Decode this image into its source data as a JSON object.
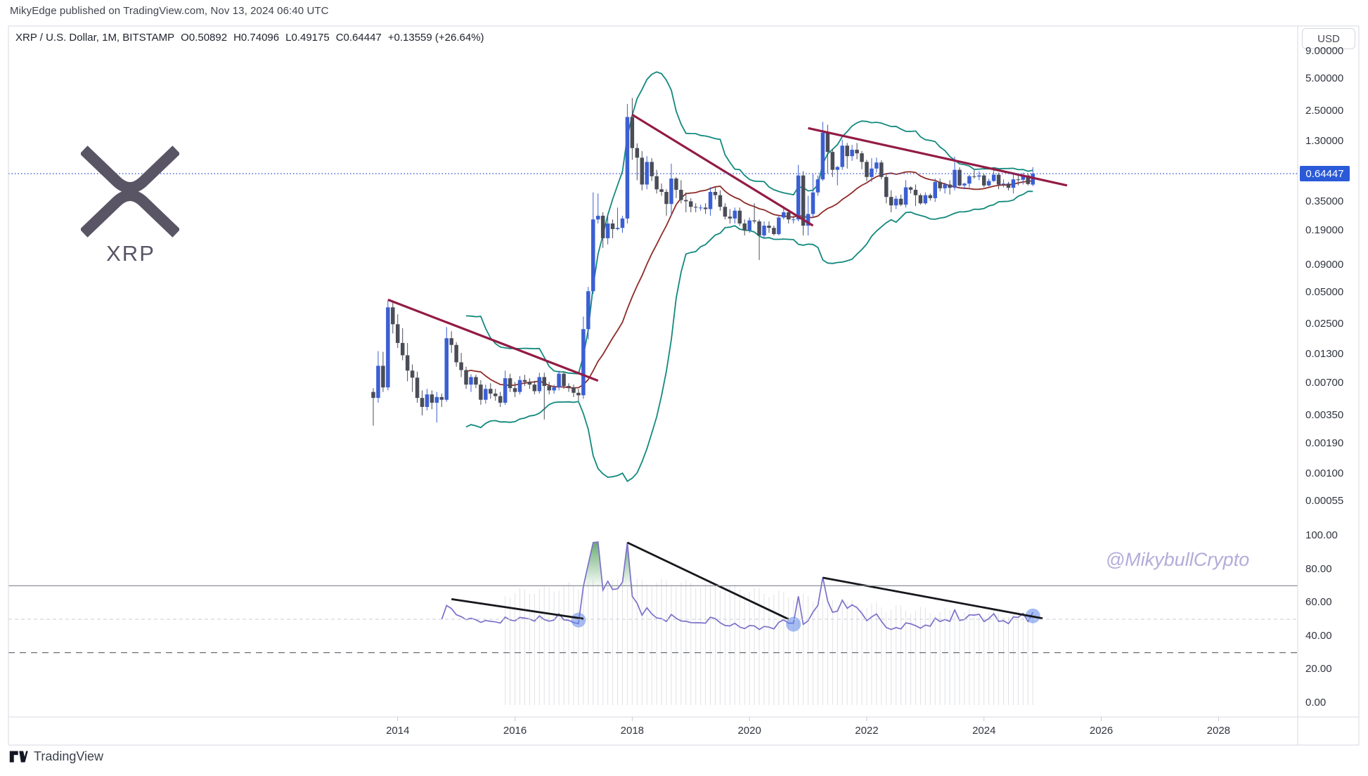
{
  "attribution": "MikyEdge published on TradingView.com, Nov 13, 2024 06:40 UTC",
  "legend": {
    "symbol": "XRP / U.S. Dollar, 1M, BITSTAMP",
    "o": "O0.50892",
    "h": "H0.74096",
    "l": "L0.49175",
    "c": "C0.64447",
    "change": "+0.13559 (+26.64%)"
  },
  "currency_button": "USD",
  "price_label": "0.64447",
  "watermark": "@MikybullCrypto",
  "logo": {
    "text": "XRP"
  },
  "footer": {
    "brand": "TradingView"
  },
  "colors": {
    "up": "#3b5fd3",
    "down": "#4a4d56",
    "bb": "#12897d",
    "bb_basis": "#8e2c28",
    "trendline": "#931b44",
    "current_line": "#3a57d0",
    "rsi": "#7b70ca",
    "rsi_trendline": "#16181d",
    "rsi_marker": "#5d87e8",
    "overbought_fill": "#4c9b57",
    "band70": "#82858f",
    "band50": "#c9ccd4",
    "band30": "#5f626c",
    "frame": "#d7dae1",
    "histogram": "#8f93a0",
    "label_bg": "#2a5ad8"
  },
  "price_axis": {
    "ticks": [
      "9.00000",
      "5.00000",
      "2.50000",
      "1.30000",
      "0.35000",
      "0.19000",
      "0.09000",
      "0.05000",
      "0.02500",
      "0.01300",
      "0.00700",
      "0.00350",
      "0.00190",
      "0.00100",
      "0.00055"
    ],
    "tick_values": [
      9,
      5,
      2.5,
      1.3,
      0.35,
      0.19,
      0.09,
      0.05,
      0.025,
      0.013,
      0.007,
      0.0035,
      0.0019,
      0.001,
      0.00055
    ]
  },
  "rsi_axis": {
    "ticks": [
      "100.00",
      "80.00",
      "60.00",
      "40.00",
      "20.00",
      "0.00"
    ],
    "tick_values": [
      100,
      80,
      60,
      40,
      20,
      0
    ],
    "bands": {
      "upper": 70,
      "middle": 50,
      "lower": 30
    }
  },
  "time_axis": {
    "years": [
      2014,
      2016,
      2018,
      2020,
      2022,
      2024,
      2026,
      2028
    ]
  },
  "chart_data": {
    "type": "candlestick",
    "title": "XRP / U.S. Dollar",
    "timeframe": "1M",
    "exchange": "BITSTAMP",
    "scale": "logarithmic",
    "current_price": 0.64447,
    "last_bar": {
      "open": 0.50892,
      "high": 0.74096,
      "low": 0.49175,
      "close": 0.64447,
      "change": 0.13559,
      "change_pct": 26.64
    },
    "start_month": "2013-08",
    "candles": [
      [
        0.0058,
        0.0063,
        0.0028,
        0.0051
      ],
      [
        0.0051,
        0.014,
        0.0046,
        0.0102
      ],
      [
        0.0102,
        0.0138,
        0.0058,
        0.0064
      ],
      [
        0.0064,
        0.042,
        0.006,
        0.036
      ],
      [
        0.036,
        0.0415,
        0.0205,
        0.025
      ],
      [
        0.025,
        0.031,
        0.015,
        0.0167
      ],
      [
        0.0167,
        0.023,
        0.0115,
        0.0128
      ],
      [
        0.0128,
        0.0167,
        0.0073,
        0.0092
      ],
      [
        0.0092,
        0.0105,
        0.0058,
        0.0079
      ],
      [
        0.0079,
        0.009,
        0.0046,
        0.0051
      ],
      [
        0.0051,
        0.006,
        0.0035,
        0.0042
      ],
      [
        0.0042,
        0.0062,
        0.0039,
        0.0055
      ],
      [
        0.0055,
        0.006,
        0.004,
        0.0046
      ],
      [
        0.0046,
        0.0058,
        0.003,
        0.0052
      ],
      [
        0.0052,
        0.0056,
        0.0042,
        0.0049
      ],
      [
        0.0049,
        0.0235,
        0.0047,
        0.0185
      ],
      [
        0.0185,
        0.0215,
        0.0135,
        0.016
      ],
      [
        0.016,
        0.017,
        0.01,
        0.011
      ],
      [
        0.011,
        0.0135,
        0.008,
        0.0093
      ],
      [
        0.0093,
        0.01,
        0.0062,
        0.0068
      ],
      [
        0.0068,
        0.0085,
        0.0058,
        0.008
      ],
      [
        0.008,
        0.0084,
        0.0063,
        0.0068
      ],
      [
        0.0068,
        0.0075,
        0.0044,
        0.0049
      ],
      [
        0.0049,
        0.0068,
        0.0045,
        0.0062
      ],
      [
        0.0062,
        0.007,
        0.005,
        0.0056
      ],
      [
        0.0056,
        0.0062,
        0.0048,
        0.0053
      ],
      [
        0.0053,
        0.0058,
        0.0042,
        0.0046
      ],
      [
        0.0046,
        0.0092,
        0.0044,
        0.0078
      ],
      [
        0.0078,
        0.0086,
        0.0058,
        0.0063
      ],
      [
        0.0063,
        0.0072,
        0.0052,
        0.0058
      ],
      [
        0.0058,
        0.0082,
        0.0055,
        0.0075
      ],
      [
        0.0075,
        0.0084,
        0.0066,
        0.0072
      ],
      [
        0.0072,
        0.0078,
        0.0062,
        0.0068
      ],
      [
        0.0068,
        0.0074,
        0.0055,
        0.0059
      ],
      [
        0.0059,
        0.0088,
        0.0056,
        0.008
      ],
      [
        0.008,
        0.0088,
        0.0032,
        0.0066
      ],
      [
        0.0066,
        0.0072,
        0.0055,
        0.006
      ],
      [
        0.006,
        0.0068,
        0.0056,
        0.0064
      ],
      [
        0.0064,
        0.0092,
        0.006,
        0.0086
      ],
      [
        0.0086,
        0.009,
        0.0062,
        0.0066
      ],
      [
        0.0066,
        0.007,
        0.0058,
        0.0064
      ],
      [
        0.0064,
        0.0068,
        0.0052,
        0.0057
      ],
      [
        0.0057,
        0.0062,
        0.0048,
        0.0054
      ],
      [
        0.0054,
        0.0295,
        0.005,
        0.0225
      ],
      [
        0.0225,
        0.056,
        0.018,
        0.051
      ],
      [
        0.051,
        0.43,
        0.048,
        0.24
      ],
      [
        0.24,
        0.42,
        0.22,
        0.26
      ],
      [
        0.26,
        0.28,
        0.13,
        0.16
      ],
      [
        0.16,
        0.26,
        0.14,
        0.22
      ],
      [
        0.22,
        0.24,
        0.16,
        0.195
      ],
      [
        0.195,
        0.31,
        0.19,
        0.2
      ],
      [
        0.2,
        0.26,
        0.18,
        0.245
      ],
      [
        0.245,
        2.9,
        0.22,
        2.19
      ],
      [
        2.19,
        3.3,
        0.87,
        1.12
      ],
      [
        1.12,
        1.24,
        0.56,
        0.91
      ],
      [
        0.91,
        1.05,
        0.45,
        0.51
      ],
      [
        0.51,
        0.94,
        0.46,
        0.83
      ],
      [
        0.83,
        0.9,
        0.55,
        0.61
      ],
      [
        0.61,
        0.7,
        0.42,
        0.46
      ],
      [
        0.46,
        0.52,
        0.4,
        0.435
      ],
      [
        0.435,
        0.46,
        0.26,
        0.335
      ],
      [
        0.335,
        0.8,
        0.26,
        0.58
      ],
      [
        0.58,
        0.6,
        0.38,
        0.455
      ],
      [
        0.455,
        0.56,
        0.34,
        0.365
      ],
      [
        0.365,
        0.43,
        0.28,
        0.355
      ],
      [
        0.355,
        0.38,
        0.28,
        0.315
      ],
      [
        0.315,
        0.34,
        0.28,
        0.31
      ],
      [
        0.31,
        0.33,
        0.29,
        0.31
      ],
      [
        0.31,
        0.34,
        0.27,
        0.3
      ],
      [
        0.3,
        0.48,
        0.26,
        0.435
      ],
      [
        0.435,
        0.49,
        0.37,
        0.405
      ],
      [
        0.405,
        0.45,
        0.29,
        0.315
      ],
      [
        0.315,
        0.34,
        0.24,
        0.255
      ],
      [
        0.255,
        0.3,
        0.22,
        0.245
      ],
      [
        0.245,
        0.31,
        0.22,
        0.29
      ],
      [
        0.29,
        0.31,
        0.21,
        0.22
      ],
      [
        0.22,
        0.24,
        0.17,
        0.19
      ],
      [
        0.19,
        0.25,
        0.18,
        0.235
      ],
      [
        0.235,
        0.34,
        0.22,
        0.23
      ],
      [
        0.23,
        0.24,
        0.1,
        0.17
      ],
      [
        0.17,
        0.23,
        0.16,
        0.21
      ],
      [
        0.21,
        0.23,
        0.18,
        0.2
      ],
      [
        0.2,
        0.21,
        0.17,
        0.175
      ],
      [
        0.175,
        0.26,
        0.17,
        0.25
      ],
      [
        0.25,
        0.32,
        0.24,
        0.28
      ],
      [
        0.28,
        0.3,
        0.22,
        0.24
      ],
      [
        0.24,
        0.26,
        0.22,
        0.24
      ],
      [
        0.24,
        0.78,
        0.23,
        0.62
      ],
      [
        0.62,
        0.68,
        0.17,
        0.21
      ],
      [
        0.21,
        0.4,
        0.17,
        0.27
      ],
      [
        0.27,
        0.64,
        0.25,
        0.43
      ],
      [
        0.43,
        0.62,
        0.4,
        0.57
      ],
      [
        0.57,
        1.97,
        0.55,
        1.56
      ],
      [
        1.56,
        1.85,
        0.65,
        1.03
      ],
      [
        1.03,
        1.1,
        0.6,
        0.7
      ],
      [
        0.7,
        0.76,
        0.5,
        0.745
      ],
      [
        0.745,
        1.34,
        0.7,
        1.18
      ],
      [
        1.18,
        1.25,
        0.72,
        0.94
      ],
      [
        0.94,
        1.2,
        0.85,
        1.08
      ],
      [
        1.08,
        1.25,
        0.88,
        1.0
      ],
      [
        1.0,
        1.05,
        0.71,
        0.83
      ],
      [
        0.83,
        0.87,
        0.55,
        0.6
      ],
      [
        0.6,
        0.9,
        0.54,
        0.72
      ],
      [
        0.72,
        0.91,
        0.66,
        0.82
      ],
      [
        0.82,
        0.86,
        0.57,
        0.6
      ],
      [
        0.6,
        0.63,
        0.34,
        0.39
      ],
      [
        0.39,
        0.45,
        0.28,
        0.325
      ],
      [
        0.325,
        0.4,
        0.3,
        0.375
      ],
      [
        0.375,
        0.41,
        0.32,
        0.33
      ],
      [
        0.33,
        0.56,
        0.31,
        0.48
      ],
      [
        0.48,
        0.49,
        0.42,
        0.455
      ],
      [
        0.455,
        0.51,
        0.32,
        0.405
      ],
      [
        0.405,
        0.42,
        0.33,
        0.34
      ],
      [
        0.34,
        0.43,
        0.33,
        0.405
      ],
      [
        0.405,
        0.42,
        0.36,
        0.38
      ],
      [
        0.38,
        0.58,
        0.35,
        0.54
      ],
      [
        0.54,
        0.58,
        0.44,
        0.47
      ],
      [
        0.47,
        0.53,
        0.42,
        0.51
      ],
      [
        0.51,
        0.56,
        0.41,
        0.475
      ],
      [
        0.475,
        0.93,
        0.45,
        0.7
      ],
      [
        0.7,
        0.74,
        0.49,
        0.5
      ],
      [
        0.5,
        0.53,
        0.46,
        0.52
      ],
      [
        0.52,
        0.63,
        0.48,
        0.61
      ],
      [
        0.61,
        0.7,
        0.58,
        0.605
      ],
      [
        0.605,
        0.68,
        0.56,
        0.62
      ],
      [
        0.62,
        0.64,
        0.48,
        0.5
      ],
      [
        0.5,
        0.58,
        0.49,
        0.55
      ],
      [
        0.55,
        0.74,
        0.54,
        0.63
      ],
      [
        0.63,
        0.66,
        0.46,
        0.51
      ],
      [
        0.51,
        0.57,
        0.48,
        0.52
      ],
      [
        0.52,
        0.54,
        0.45,
        0.475
      ],
      [
        0.475,
        0.64,
        0.42,
        0.57
      ],
      [
        0.57,
        0.62,
        0.5,
        0.565
      ],
      [
        0.565,
        0.66,
        0.51,
        0.62
      ],
      [
        0.62,
        0.65,
        0.5,
        0.515
      ],
      [
        0.50892,
        0.74096,
        0.49175,
        0.64447
      ]
    ],
    "indicators": {
      "bollinger": {
        "window": 20,
        "mult": 2,
        "log_space": true
      },
      "rsi": {
        "window": 14
      }
    },
    "price_trendlines": [
      {
        "from": {
          "m": "2013-11",
          "p": 0.0425
        },
        "to": {
          "m": "2017-06",
          "p": 0.0074
        }
      },
      {
        "from": {
          "m": "2018-01",
          "p": 2.3
        },
        "to": {
          "m": "2021-02",
          "p": 0.21
        }
      },
      {
        "from": {
          "m": "2021-01",
          "p": 1.72
        },
        "to": {
          "m": "2025-06",
          "p": 0.5
        }
      }
    ],
    "rsi_trendlines": [
      {
        "from": {
          "m": "2014-12",
          "v": 62
        },
        "to": {
          "m": "2017-03",
          "v": 50.3
        }
      },
      {
        "from": {
          "m": "2017-12",
          "v": 95.8
        },
        "to": {
          "m": "2020-09",
          "v": 50
        }
      },
      {
        "from": {
          "m": "2021-04",
          "v": 74.8
        },
        "to": {
          "m": "2025-01",
          "v": 50.5
        }
      }
    ],
    "rsi_markers": [
      {
        "m": "2017-02",
        "v": 49.5
      },
      {
        "m": "2020-10",
        "v": 47
      },
      {
        "m": "2024-11",
        "v": 52
      }
    ],
    "rsi_fill_ranges": [
      {
        "from": "2017-03",
        "to": "2018-03"
      }
    ]
  }
}
